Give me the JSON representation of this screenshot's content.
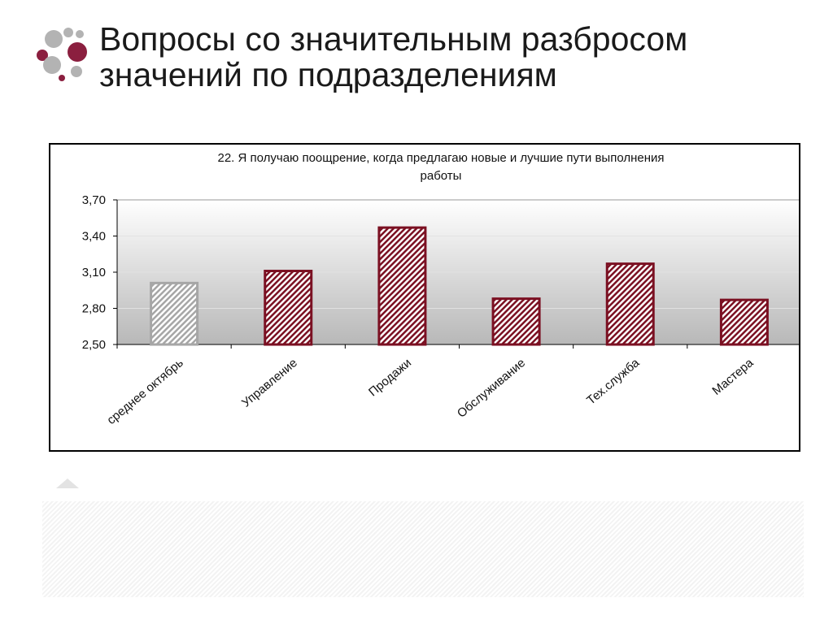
{
  "slide": {
    "title_line1": "Вопросы со значительным разбросом",
    "title_line2": "значений по подразделениям"
  },
  "chart_data": {
    "type": "bar",
    "title_line1": "22. Я получаю поощрение, когда предлагаю новые и лучшие пути выполнения",
    "title_line2": "работы",
    "categories": [
      "среднее октябрь",
      "Управление",
      "Продажи",
      "Обслуживание",
      "Тех.служба",
      "Мастера"
    ],
    "values": [
      3.01,
      3.11,
      3.47,
      2.88,
      3.17,
      2.87
    ],
    "ylim": [
      2.5,
      3.7
    ],
    "yticks": [
      "2,50",
      "2,80",
      "3,10",
      "3,40",
      "3,70"
    ],
    "ytick_values": [
      2.5,
      2.8,
      3.1,
      3.4,
      3.7
    ],
    "grid": true,
    "legend": "none",
    "colors": {
      "baseline_bar": "#a6a6a6",
      "department_bar": "#7b1022",
      "plot_gradient_top": "#ffffff",
      "plot_gradient_bottom": "#b8b8b8"
    }
  },
  "logo": {
    "colors": [
      "#8b1f3f",
      "#b3b3b3"
    ]
  }
}
